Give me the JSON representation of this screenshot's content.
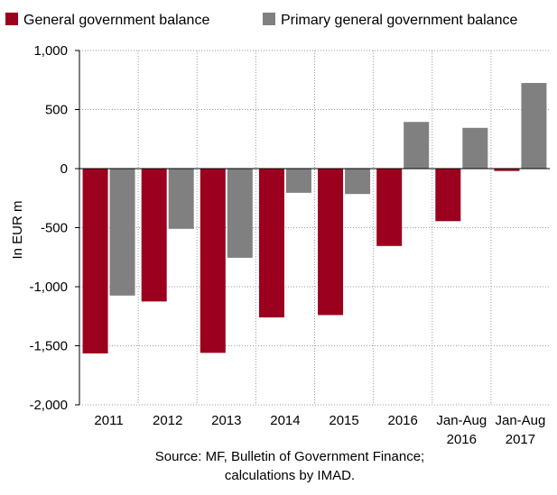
{
  "chart_data": {
    "type": "bar",
    "categories": [
      [
        "2011"
      ],
      [
        "2012"
      ],
      [
        "2013"
      ],
      [
        "2014"
      ],
      [
        "2015"
      ],
      [
        "2016"
      ],
      [
        "Jan-Aug",
        "2016"
      ],
      [
        "Jan-Aug",
        "2017"
      ]
    ],
    "series": [
      {
        "name": "General government balance",
        "color": "#9b001f",
        "values": [
          -1565,
          -1125,
          -1560,
          -1260,
          -1240,
          -655,
          -445,
          -20
        ]
      },
      {
        "name": "Primary general government balance",
        "color": "#808080",
        "values": [
          -1075,
          -510,
          -755,
          -205,
          -215,
          395,
          345,
          725
        ]
      }
    ],
    "ylabel": "In EUR m",
    "ylim": [
      -2000,
      1000
    ],
    "yticks": [
      1000,
      500,
      0,
      -500,
      -1000,
      -1500,
      -2000
    ],
    "ytick_labels": [
      "1,000",
      "500",
      "0",
      "-500",
      "-1,000",
      "-1,500",
      "-2,000"
    ],
    "grid": "dotted",
    "legend": "top",
    "source": [
      "Source: MF, Bulletin of Government Finance;",
      "calculations by IMAD."
    ]
  }
}
